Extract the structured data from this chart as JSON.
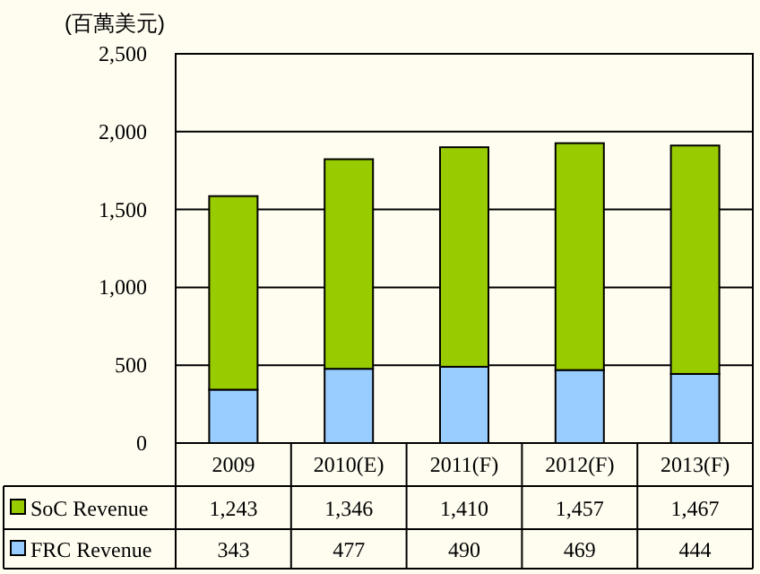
{
  "chart_data": {
    "type": "bar",
    "stacked": true,
    "ylabel": "(百萬美元)",
    "categories": [
      "2009",
      "2010(E)",
      "2011(F)",
      "2012(F)",
      "2013(F)"
    ],
    "series": [
      {
        "name": "FRC Revenue",
        "color": "#99ccff",
        "values": [
          343,
          477,
          490,
          469,
          444
        ],
        "value_labels": [
          "343",
          "477",
          "490",
          "469",
          "444"
        ]
      },
      {
        "name": "SoC Revenue",
        "color": "#99cc00",
        "values": [
          1243,
          1346,
          1410,
          1457,
          1467
        ],
        "value_labels": [
          "1,243",
          "1,346",
          "1,410",
          "1,457",
          "1,467"
        ]
      }
    ],
    "ylim": [
      0,
      2500
    ],
    "yticks": [
      0,
      {
        "value": 500,
        "label": "500"
      },
      {
        "value": 1000,
        "label": "1,000"
      },
      {
        "value": 1500,
        "label": "1,500"
      },
      {
        "value": 2000,
        "label": "2,000"
      },
      {
        "value": 2500,
        "label": "2,500"
      }
    ],
    "grid": "y",
    "legend": "bottom"
  }
}
